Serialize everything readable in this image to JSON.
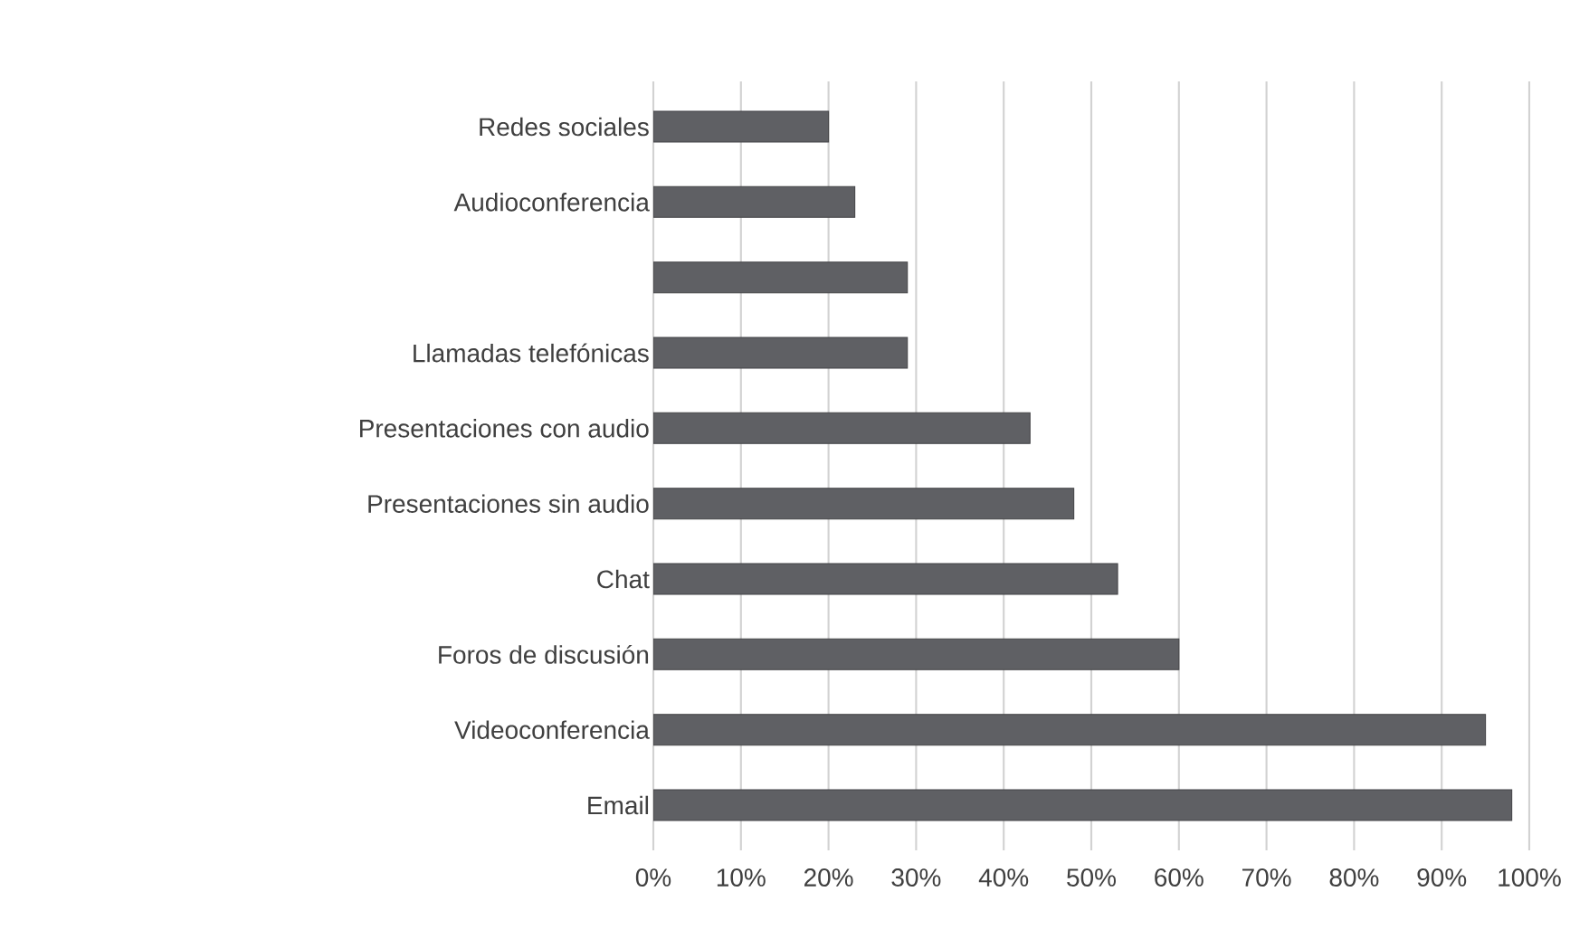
{
  "chart_data": {
    "type": "bar",
    "orientation": "horizontal",
    "categories": [
      "Redes sociales",
      "Audioconferencia",
      null,
      "Llamadas telefónicas",
      "Presentaciones con audio",
      "Presentaciones sin audio",
      "Chat",
      "Foros de discusión",
      "Videoconferencia",
      "Email"
    ],
    "values": [
      20,
      23,
      29,
      29,
      43,
      48,
      53,
      60,
      95,
      98
    ],
    "color": "#5f6064",
    "xlim": [
      0,
      100
    ],
    "xticks": [
      {
        "value": 0,
        "label": "0%"
      },
      {
        "value": 10,
        "label": "10%"
      },
      {
        "value": 20,
        "label": "20%"
      },
      {
        "value": 30,
        "label": "30%"
      },
      {
        "value": 40,
        "label": "40%"
      },
      {
        "value": 50,
        "label": "50%"
      },
      {
        "value": 60,
        "label": "60%"
      },
      {
        "value": 70,
        "label": "70%"
      },
      {
        "value": 80,
        "label": "80%"
      },
      {
        "value": 90,
        "label": "90%"
      },
      {
        "value": 100,
        "label": "100%"
      }
    ],
    "grid": "x"
  }
}
